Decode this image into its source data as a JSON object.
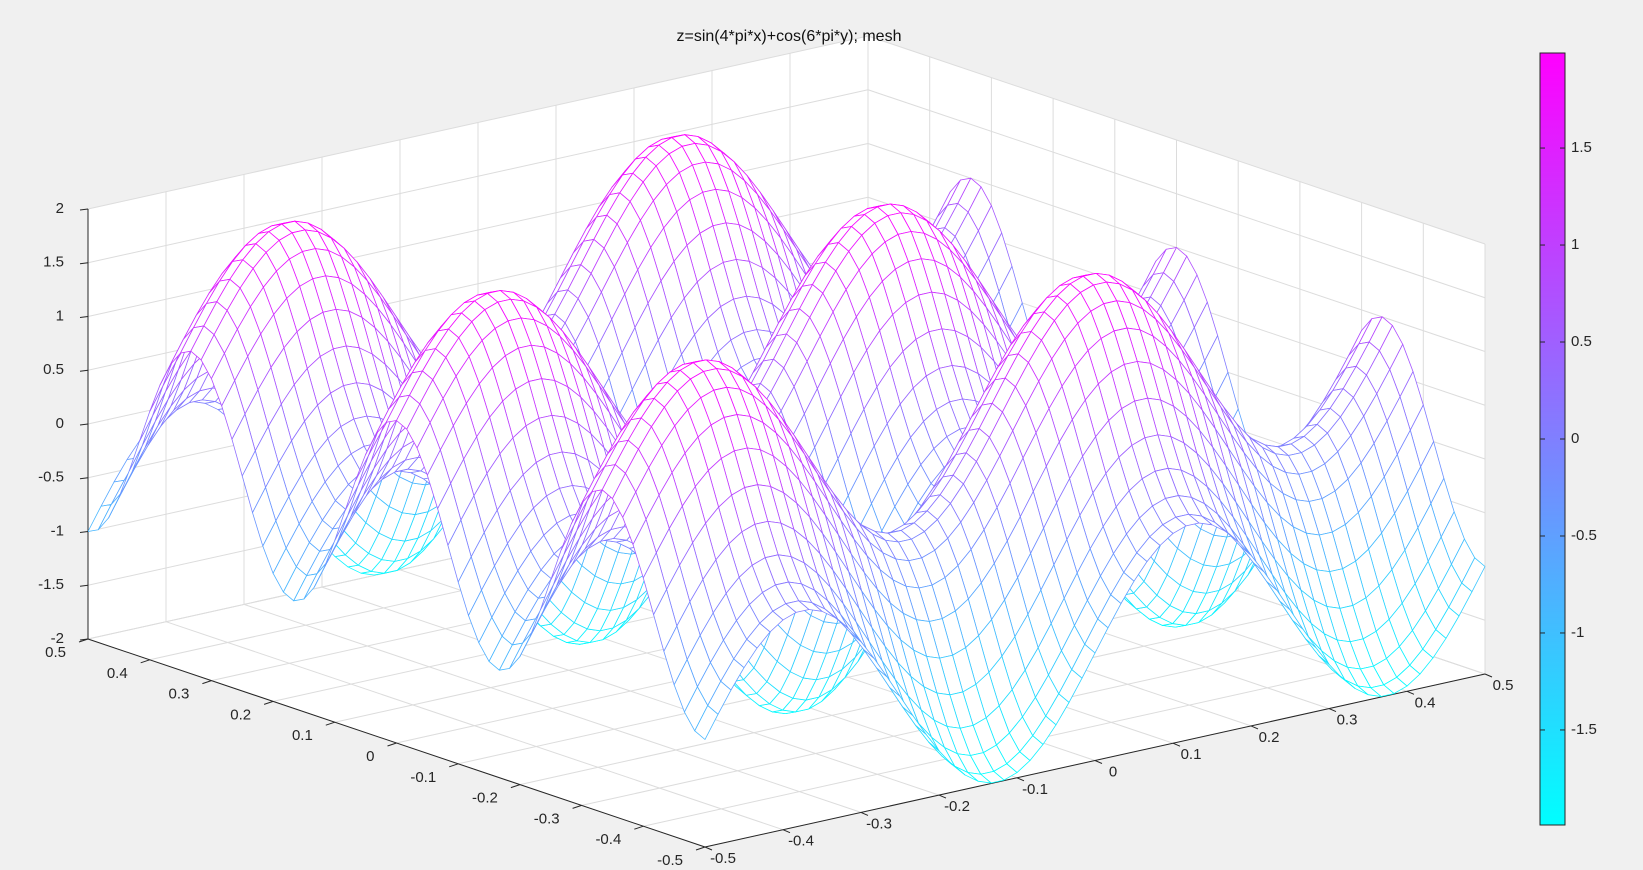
{
  "figure": {
    "title": "z=sin(4*pi*x)+cos(6*pi*y); mesh"
  },
  "chart_data": {
    "type": "mesh",
    "title": "z=sin(4*pi*x)+cos(6*pi*y); mesh",
    "function": "z=sin(4*pi*x)+cos(6*pi*y)",
    "x_range": [
      -0.5,
      0.5
    ],
    "y_range": [
      -0.5,
      0.5
    ],
    "z_range": [
      -2,
      2
    ],
    "grid": true,
    "colormap": "cool",
    "colormap_endpoints": [
      "#00ffff",
      "#ff00ff"
    ],
    "mesh_lines": 60,
    "x_ticks": [
      "-0.5",
      "-0.4",
      "-0.3",
      "-0.2",
      "-0.1",
      "0",
      "0.1",
      "0.2",
      "0.3",
      "0.4",
      "0.5"
    ],
    "y_ticks": [
      "-0.5",
      "-0.4",
      "-0.3",
      "-0.2",
      "-0.1",
      "0",
      "0.1",
      "0.2",
      "0.3",
      "0.4",
      "0.5"
    ],
    "z_ticks": [
      "-2",
      "-1.5",
      "-1",
      "-0.5",
      "0",
      "0.5",
      "1",
      "1.5",
      "2"
    ],
    "colorbar": {
      "range": [
        -1.99,
        1.99
      ],
      "ticks": [
        "-1.5",
        "-1",
        "-0.5",
        "0",
        "0.5",
        "1",
        "1.5"
      ]
    }
  }
}
